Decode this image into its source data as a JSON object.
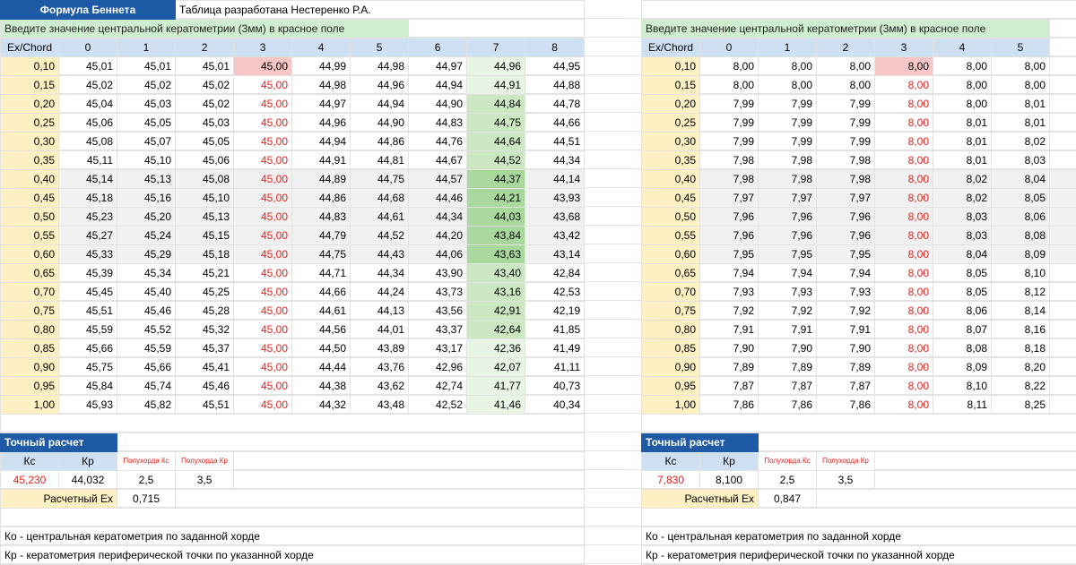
{
  "header": {
    "formula_title": "Формула Беннета",
    "author_note": "Таблица разработана Нестеренко Р.А."
  },
  "left": {
    "input_prompt": "Введите значение центральной кератометрии (3мм) в красное поле",
    "corner": "Ex/Chord",
    "cols": [
      "0",
      "1",
      "2",
      "3",
      "4",
      "5",
      "6",
      "7",
      "8"
    ],
    "rows": [
      {
        "ex": "0,10",
        "v": [
          "45,01",
          "45,01",
          "45,01",
          "45,00",
          "44,99",
          "44,98",
          "44,97",
          "44,96",
          "44,95"
        ]
      },
      {
        "ex": "0,15",
        "v": [
          "45,02",
          "45,02",
          "45,02",
          "45,00",
          "44,98",
          "44,96",
          "44,94",
          "44,91",
          "44,88"
        ]
      },
      {
        "ex": "0,20",
        "v": [
          "45,04",
          "45,03",
          "45,02",
          "45,00",
          "44,97",
          "44,94",
          "44,90",
          "44,84",
          "44,78"
        ]
      },
      {
        "ex": "0,25",
        "v": [
          "45,06",
          "45,05",
          "45,03",
          "45,00",
          "44,96",
          "44,90",
          "44,83",
          "44,75",
          "44,66"
        ]
      },
      {
        "ex": "0,30",
        "v": [
          "45,08",
          "45,07",
          "45,05",
          "45,00",
          "44,94",
          "44,86",
          "44,76",
          "44,64",
          "44,51"
        ]
      },
      {
        "ex": "0,35",
        "v": [
          "45,11",
          "45,10",
          "45,06",
          "45,00",
          "44,91",
          "44,81",
          "44,67",
          "44,52",
          "44,34"
        ]
      },
      {
        "ex": "0,40",
        "v": [
          "45,14",
          "45,13",
          "45,08",
          "45,00",
          "44,89",
          "44,75",
          "44,57",
          "44,37",
          "44,14"
        ]
      },
      {
        "ex": "0,45",
        "v": [
          "45,18",
          "45,16",
          "45,10",
          "45,00",
          "44,86",
          "44,68",
          "44,46",
          "44,21",
          "43,93"
        ]
      },
      {
        "ex": "0,50",
        "v": [
          "45,23",
          "45,20",
          "45,13",
          "45,00",
          "44,83",
          "44,61",
          "44,34",
          "44,03",
          "43,68"
        ]
      },
      {
        "ex": "0,55",
        "v": [
          "45,27",
          "45,24",
          "45,15",
          "45,00",
          "44,79",
          "44,52",
          "44,20",
          "43,84",
          "43,42"
        ]
      },
      {
        "ex": "0,60",
        "v": [
          "45,33",
          "45,29",
          "45,18",
          "45,00",
          "44,75",
          "44,43",
          "44,06",
          "43,63",
          "43,14"
        ]
      },
      {
        "ex": "0,65",
        "v": [
          "45,39",
          "45,34",
          "45,21",
          "45,00",
          "44,71",
          "44,34",
          "43,90",
          "43,40",
          "42,84"
        ]
      },
      {
        "ex": "0,70",
        "v": [
          "45,45",
          "45,40",
          "45,25",
          "45,00",
          "44,66",
          "44,24",
          "43,73",
          "43,16",
          "42,53"
        ]
      },
      {
        "ex": "0,75",
        "v": [
          "45,51",
          "45,46",
          "45,28",
          "45,00",
          "44,61",
          "44,13",
          "43,56",
          "42,91",
          "42,19"
        ]
      },
      {
        "ex": "0,80",
        "v": [
          "45,59",
          "45,52",
          "45,32",
          "45,00",
          "44,56",
          "44,01",
          "43,37",
          "42,64",
          "41,85"
        ]
      },
      {
        "ex": "0,85",
        "v": [
          "45,66",
          "45,59",
          "45,37",
          "45,00",
          "44,50",
          "43,89",
          "43,17",
          "42,36",
          "41,49"
        ]
      },
      {
        "ex": "0,90",
        "v": [
          "45,75",
          "45,66",
          "45,41",
          "45,00",
          "44,44",
          "43,76",
          "42,96",
          "42,07",
          "41,11"
        ]
      },
      {
        "ex": "0,95",
        "v": [
          "45,84",
          "45,74",
          "45,46",
          "45,00",
          "44,38",
          "43,62",
          "42,74",
          "41,77",
          "40,73"
        ]
      },
      {
        "ex": "1,00",
        "v": [
          "45,93",
          "45,82",
          "45,51",
          "45,00",
          "44,32",
          "43,48",
          "42,52",
          "41,46",
          "40,34"
        ]
      }
    ],
    "calc": {
      "title": "Точный расчет",
      "kc_label": "Кс",
      "kp_label": "Кр",
      "half_kc_label": "Полухорда Кс",
      "half_kp_label": "Полухорда Кр",
      "kc_value": "45,230",
      "kp_value": "44,032",
      "half_kc_value": "2,5",
      "half_kp_value": "3,5",
      "ex_label": "Расчетный Ех",
      "ex_value": "0,715"
    },
    "legend": [
      "Ко - центральная кератометрия по заданной хорде",
      "Кр - кератометрия периферической точки по указанной хорде"
    ]
  },
  "right": {
    "input_prompt": "Введите значение центральной кератометрии (3мм) в красное поле",
    "corner": "Ex/Chord",
    "cols": [
      "0",
      "1",
      "2",
      "3",
      "4",
      "5"
    ],
    "rows": [
      {
        "ex": "0,10",
        "v": [
          "8,00",
          "8,00",
          "8,00",
          "8,00",
          "8,00",
          "8,00"
        ]
      },
      {
        "ex": "0,15",
        "v": [
          "8,00",
          "8,00",
          "8,00",
          "8,00",
          "8,00",
          "8,00"
        ]
      },
      {
        "ex": "0,20",
        "v": [
          "7,99",
          "7,99",
          "7,99",
          "8,00",
          "8,00",
          "8,01"
        ]
      },
      {
        "ex": "0,25",
        "v": [
          "7,99",
          "7,99",
          "7,99",
          "8,00",
          "8,01",
          "8,01"
        ]
      },
      {
        "ex": "0,30",
        "v": [
          "7,99",
          "7,99",
          "7,99",
          "8,00",
          "8,01",
          "8,02"
        ]
      },
      {
        "ex": "0,35",
        "v": [
          "7,98",
          "7,98",
          "7,98",
          "8,00",
          "8,01",
          "8,03"
        ]
      },
      {
        "ex": "0,40",
        "v": [
          "7,98",
          "7,98",
          "7,98",
          "8,00",
          "8,02",
          "8,04"
        ]
      },
      {
        "ex": "0,45",
        "v": [
          "7,97",
          "7,97",
          "7,97",
          "8,00",
          "8,02",
          "8,05"
        ]
      },
      {
        "ex": "0,50",
        "v": [
          "7,96",
          "7,96",
          "7,96",
          "8,00",
          "8,03",
          "8,06"
        ]
      },
      {
        "ex": "0,55",
        "v": [
          "7,96",
          "7,96",
          "7,96",
          "8,00",
          "8,03",
          "8,08"
        ]
      },
      {
        "ex": "0,60",
        "v": [
          "7,95",
          "7,95",
          "7,95",
          "8,00",
          "8,04",
          "8,09"
        ]
      },
      {
        "ex": "0,65",
        "v": [
          "7,94",
          "7,94",
          "7,94",
          "8,00",
          "8,05",
          "8,10"
        ]
      },
      {
        "ex": "0,70",
        "v": [
          "7,93",
          "7,93",
          "7,93",
          "8,00",
          "8,05",
          "8,12"
        ]
      },
      {
        "ex": "0,75",
        "v": [
          "7,92",
          "7,92",
          "7,92",
          "8,00",
          "8,06",
          "8,14"
        ]
      },
      {
        "ex": "0,80",
        "v": [
          "7,91",
          "7,91",
          "7,91",
          "8,00",
          "8,07",
          "8,16"
        ]
      },
      {
        "ex": "0,85",
        "v": [
          "7,90",
          "7,90",
          "7,90",
          "8,00",
          "8,08",
          "8,18"
        ]
      },
      {
        "ex": "0,90",
        "v": [
          "7,89",
          "7,89",
          "7,89",
          "8,00",
          "8,09",
          "8,20"
        ]
      },
      {
        "ex": "0,95",
        "v": [
          "7,87",
          "7,87",
          "7,87",
          "8,00",
          "8,10",
          "8,22"
        ]
      },
      {
        "ex": "1,00",
        "v": [
          "7,86",
          "7,86",
          "7,86",
          "8,00",
          "8,11",
          "8,25"
        ]
      }
    ],
    "calc": {
      "title": "Точный расчет",
      "kc_label": "Кс",
      "kp_label": "Кр",
      "half_kc_label": "Полухорда Кс",
      "half_kp_label": "Полухорда Кр",
      "kc_value": "7,830",
      "kp_value": "8,100",
      "half_kc_value": "2,5",
      "half_kp_value": "3,5",
      "ex_label": "Расчетный Ех",
      "ex_value": "0,847"
    },
    "legend": [
      "Ко - центральная кератометрия по заданной хорде",
      "Кр - кератометрия периферической точки по указанной хорде"
    ]
  },
  "colors": {
    "title_bg": "#1f5aa6",
    "header_bg": "#cfe0f3",
    "input_bar_bg": "#cfeecf",
    "ex_bg": "#fdf0c2",
    "red_text": "#e3231c",
    "red_cell_bg": "#f6c6c6"
  }
}
